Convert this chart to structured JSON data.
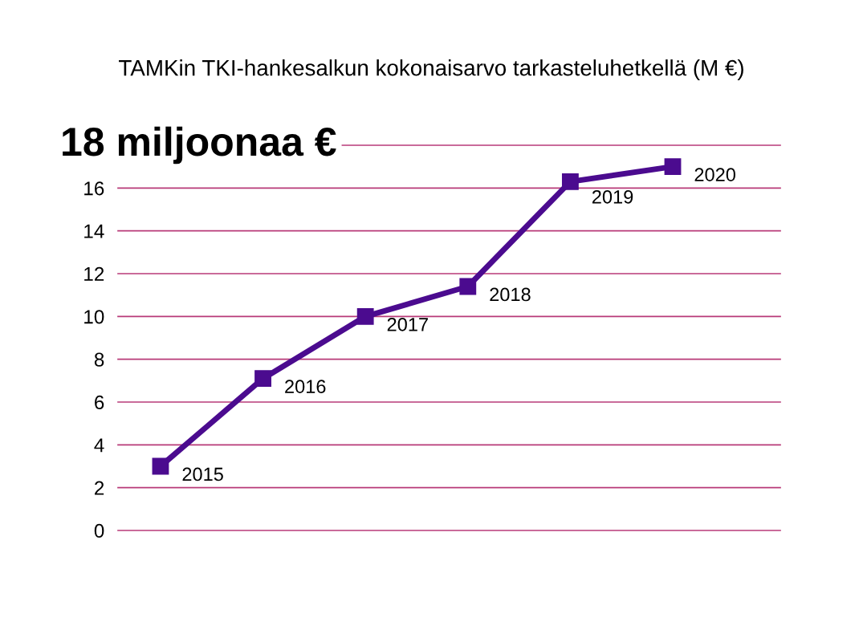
{
  "chart_data": {
    "type": "line",
    "title": "TAMKin TKI-hankesalkun kokonaisarvo tarkasteluhetkellä (M €)",
    "categories": [
      "2015",
      "2016",
      "2017",
      "2018",
      "2019",
      "2020"
    ],
    "series": [
      {
        "color": "#4b0b8f",
        "values": [
          3.0,
          7.1,
          10.0,
          11.4,
          16.3,
          17.0
        ]
      }
    ],
    "ylim": [
      0,
      18
    ],
    "yticks": [
      0,
      2,
      4,
      6,
      8,
      10,
      12,
      14,
      16,
      {
        "value": 18,
        "label": null
      }
    ],
    "annotations": [
      "18 miljoonaa €"
    ],
    "grid": "y",
    "tick_labels": "y",
    "marker": "square",
    "line_style": "solid"
  }
}
